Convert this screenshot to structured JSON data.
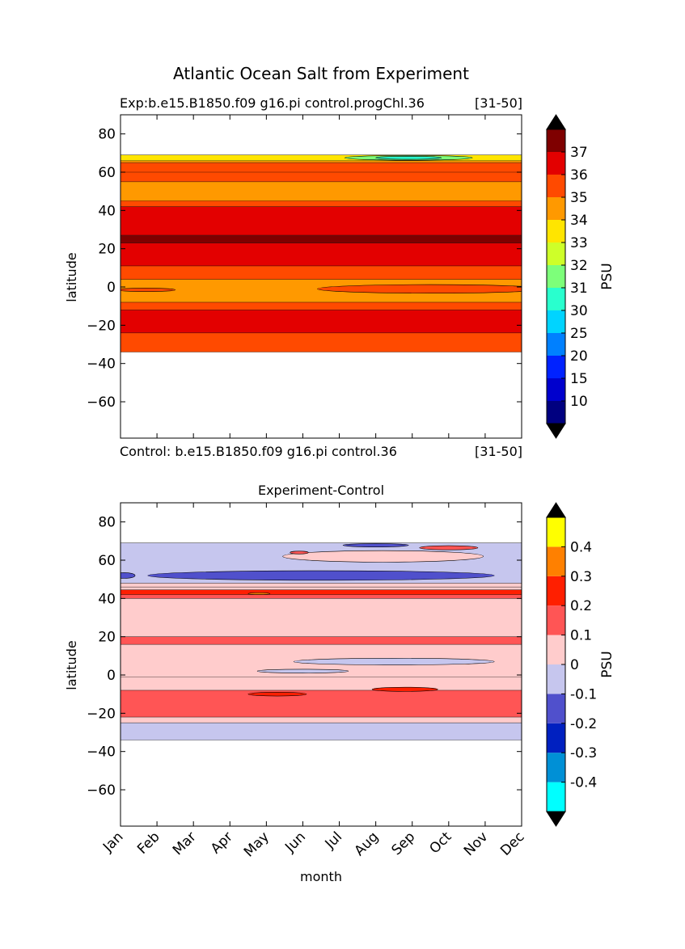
{
  "figure": {
    "title": "Atlantic Ocean Salt from Experiment"
  },
  "chart_data": [
    {
      "type": "heatmap",
      "title_left": "Exp:b.e15.B1850.f09 g16.pi control.progChl.36",
      "title_right": "[31-50]",
      "footer_left": "Control: b.e15.B1850.f09 g16.pi control.36",
      "footer_right": "[31-50]",
      "xlabel": "",
      "ylabel": "latitude",
      "x_ticks": [],
      "y_ticks": [
        "80",
        "60",
        "40",
        "20",
        "0",
        "−20",
        "−40",
        "−60"
      ],
      "ylim": [
        -79,
        90
      ],
      "x": [
        "Jan",
        "Feb",
        "Mar",
        "Apr",
        "May",
        "Jun",
        "Jul",
        "Aug",
        "Sep",
        "Oct",
        "Nov",
        "Dec"
      ],
      "colorbar": {
        "label": "PSU",
        "levels": [
          5,
          10,
          15,
          20,
          25,
          30,
          31,
          32,
          33,
          34,
          35,
          36,
          37,
          38
        ],
        "tick_labels": [
          "10",
          "15",
          "20",
          "25",
          "30",
          "31",
          "32",
          "33",
          "34",
          "35",
          "36",
          "37"
        ],
        "colors": [
          "#000080",
          "#0000cd",
          "#0022ff",
          "#0080ff",
          "#00d4ff",
          "#29ffce",
          "#7dff7a",
          "#ceff29",
          "#ffe500",
          "#ff9900",
          "#ff4a00",
          "#e30000",
          "#7f0000"
        ],
        "over_color": "#000000",
        "under_color": "#000000"
      },
      "bands": [
        {
          "lat": [
            -34,
            -24
          ],
          "value": 34.8,
          "color": "#ff4a00"
        },
        {
          "lat": [
            -24,
            -12
          ],
          "value": 35.8,
          "color": "#e30000"
        },
        {
          "lat": [
            -12,
            -8
          ],
          "value": 34.8,
          "color": "#ff4a00"
        },
        {
          "lat": [
            -8,
            4
          ],
          "value": 34.5,
          "color": "#ff9900"
        },
        {
          "lat": [
            4,
            11
          ],
          "value": 34.8,
          "color": "#ff4a00"
        },
        {
          "lat": [
            11,
            23
          ],
          "value": 35.8,
          "color": "#e30000"
        },
        {
          "lat": [
            23,
            27
          ],
          "value": 36.5,
          "color": "#7f0000"
        },
        {
          "lat": [
            27,
            42
          ],
          "value": 35.8,
          "color": "#e30000"
        },
        {
          "lat": [
            42,
            45
          ],
          "value": 34.8,
          "color": "#ff4a00"
        },
        {
          "lat": [
            45,
            55
          ],
          "value": 34.5,
          "color": "#ff9900"
        },
        {
          "lat": [
            55,
            60
          ],
          "value": 34.8,
          "color": "#ff4a00"
        },
        {
          "lat": [
            60,
            65
          ],
          "value": 34.8,
          "color": "#ff4a00"
        },
        {
          "lat": [
            65,
            66
          ],
          "value": 34.5,
          "color": "#ff9900"
        },
        {
          "lat": [
            66,
            69
          ],
          "value": 33.5,
          "color": "#ffe500"
        }
      ],
      "patches": [
        {
          "month": 7.9,
          "lat": 67.5,
          "w_months": 3.5,
          "h_lat": 2.5,
          "value": 31.5,
          "color": "#7dff7a"
        },
        {
          "month": 7.9,
          "lat": 67.5,
          "w_months": 1.8,
          "h_lat": 1.5,
          "value": 30.5,
          "color": "#29ffce"
        },
        {
          "month": 8.5,
          "lat": -1,
          "w_months": 6.2,
          "h_lat": 4.5,
          "value": 34.8,
          "color": "#ff4a00"
        },
        {
          "month": 0.7,
          "lat": -1.5,
          "w_months": 1.6,
          "h_lat": 1.8,
          "value": 34.8,
          "color": "#ff4a00"
        }
      ]
    },
    {
      "type": "heatmap",
      "title": "Experiment-Control",
      "xlabel": "month",
      "ylabel": "latitude",
      "x_ticks": [
        "Jan",
        "Feb",
        "Mar",
        "Apr",
        "May",
        "Jun",
        "Jul",
        "Aug",
        "Sep",
        "Oct",
        "Nov",
        "Dec"
      ],
      "y_ticks": [
        "80",
        "60",
        "40",
        "20",
        "0",
        "−20",
        "−40",
        "−60"
      ],
      "ylim": [
        -79,
        90
      ],
      "x": [
        "Jan",
        "Feb",
        "Mar",
        "Apr",
        "May",
        "Jun",
        "Jul",
        "Aug",
        "Sep",
        "Oct",
        "Nov",
        "Dec"
      ],
      "colorbar": {
        "label": "PSU",
        "levels": [
          -0.5,
          -0.4,
          -0.3,
          -0.2,
          -0.1,
          0,
          0.1,
          0.2,
          0.3,
          0.4,
          0.5
        ],
        "tick_labels": [
          "-0.4",
          "-0.3",
          "-0.2",
          "-0.1",
          "0",
          "0.1",
          "0.2",
          "0.3",
          "0.4"
        ],
        "colors": [
          "#00ffff",
          "#0090d6",
          "#0020c0",
          "#5050cc",
          "#c6c6ee",
          "#ffcccc",
          "#ff5555",
          "#ff1f00",
          "#ff8000",
          "#ffff00"
        ],
        "over_color": "#000000",
        "under_color": "#000000"
      },
      "bands": [
        {
          "lat": [
            -34,
            -25
          ],
          "value": -0.05,
          "color": "#c6c6ee"
        },
        {
          "lat": [
            -25,
            -22
          ],
          "value": 0.05,
          "color": "#ffcccc"
        },
        {
          "lat": [
            -22,
            -8
          ],
          "value": 0.15,
          "color": "#ff5555"
        },
        {
          "lat": [
            -8,
            -1
          ],
          "value": 0.05,
          "color": "#ffcccc"
        },
        {
          "lat": [
            -1,
            16
          ],
          "value": 0.05,
          "color": "#ffcccc"
        },
        {
          "lat": [
            16,
            20
          ],
          "value": 0.15,
          "color": "#ff5555"
        },
        {
          "lat": [
            20,
            40
          ],
          "value": 0.05,
          "color": "#ffcccc"
        },
        {
          "lat": [
            40,
            42
          ],
          "value": 0.15,
          "color": "#ff5555"
        },
        {
          "lat": [
            42,
            44.5
          ],
          "value": 0.25,
          "color": "#ff1f00"
        },
        {
          "lat": [
            44.5,
            46
          ],
          "value": 0.05,
          "color": "#ffcccc"
        },
        {
          "lat": [
            46,
            48
          ],
          "value": 0.05,
          "color": "#ffcccc"
        },
        {
          "lat": [
            48,
            69
          ],
          "value": -0.05,
          "color": "#c6c6ee"
        }
      ],
      "patches": [
        {
          "month": 5.5,
          "lat": 52,
          "w_months": 9.5,
          "h_lat": 5,
          "value": -0.15,
          "color": "#5050cc"
        },
        {
          "month": 0.1,
          "lat": 52,
          "w_months": 0.6,
          "h_lat": 3,
          "value": -0.15,
          "color": "#5050cc"
        },
        {
          "month": 7.2,
          "lat": 62,
          "w_months": 5.5,
          "h_lat": 6,
          "value": 0.05,
          "color": "#ffcccc"
        },
        {
          "month": 4.9,
          "lat": 64,
          "w_months": 0.5,
          "h_lat": 1.5,
          "value": 0.15,
          "color": "#ff5555"
        },
        {
          "month": 7.0,
          "lat": 67.8,
          "w_months": 1.8,
          "h_lat": 1.8,
          "value": -0.15,
          "color": "#5050cc"
        },
        {
          "month": 9.0,
          "lat": 66.5,
          "w_months": 1.6,
          "h_lat": 2.2,
          "value": 0.15,
          "color": "#ff5555"
        },
        {
          "month": 7.5,
          "lat": 7,
          "w_months": 5.5,
          "h_lat": 3.5,
          "value": -0.05,
          "color": "#c6c6ee"
        },
        {
          "month": 5.0,
          "lat": 2,
          "w_months": 2.5,
          "h_lat": 2,
          "value": -0.05,
          "color": "#c6c6ee"
        },
        {
          "month": 4.3,
          "lat": -10,
          "w_months": 1.6,
          "h_lat": 2,
          "value": 0.25,
          "color": "#ff1f00"
        },
        {
          "month": 7.8,
          "lat": -7.5,
          "w_months": 1.8,
          "h_lat": 2.2,
          "value": 0.25,
          "color": "#ff1f00"
        },
        {
          "month": 3.8,
          "lat": 42.5,
          "w_months": 0.6,
          "h_lat": 1,
          "value": 0.35,
          "color": "#ff8000"
        }
      ]
    }
  ]
}
